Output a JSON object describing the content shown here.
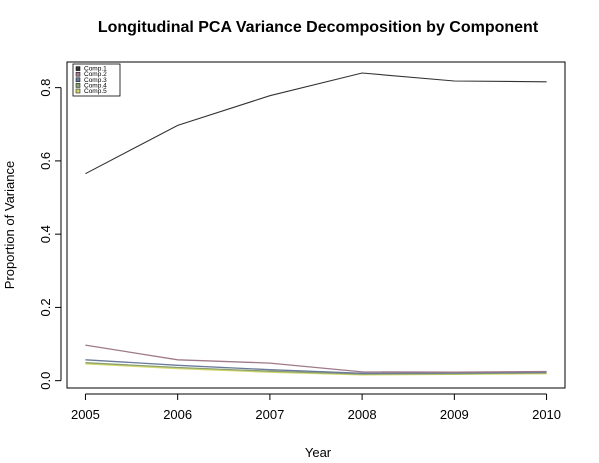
{
  "chart_data": {
    "type": "line",
    "title": "Longitudinal PCA Variance Decomposition by Component",
    "xlabel": "Year",
    "ylabel": "Proportion of Variance",
    "x": [
      2005,
      2006,
      2007,
      2008,
      2009,
      2010
    ],
    "xlim": [
      2004.8,
      2010.2
    ],
    "ylim": [
      -0.02,
      0.87
    ],
    "yticks": [
      "0.0",
      "0.2",
      "0.4",
      "0.6",
      "0.8"
    ],
    "ytick_values": [
      0.0,
      0.2,
      0.4,
      0.6,
      0.8
    ],
    "xticks": [
      "2005",
      "2006",
      "2007",
      "2008",
      "2009",
      "2010"
    ],
    "legend_position": "top-left",
    "grid": false,
    "series": [
      {
        "name": "Comp.1",
        "color": "#333333",
        "values": [
          0.565,
          0.697,
          0.778,
          0.84,
          0.818,
          0.816
        ]
      },
      {
        "name": "Comp.2",
        "color": "#9e7a8a",
        "values": [
          0.097,
          0.057,
          0.048,
          0.024,
          0.023,
          0.025
        ]
      },
      {
        "name": "Comp.3",
        "color": "#6a7a9a",
        "values": [
          0.057,
          0.042,
          0.03,
          0.02,
          0.021,
          0.023
        ]
      },
      {
        "name": "Comp.4",
        "color": "#8aa070",
        "values": [
          0.049,
          0.036,
          0.026,
          0.018,
          0.019,
          0.021
        ]
      },
      {
        "name": "Comp.5",
        "color": "#d4d86a",
        "values": [
          0.046,
          0.033,
          0.023,
          0.016,
          0.017,
          0.019
        ]
      }
    ]
  }
}
